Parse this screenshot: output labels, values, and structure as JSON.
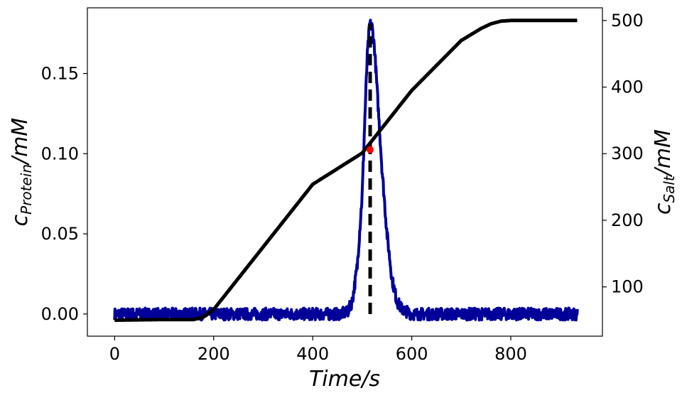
{
  "chart_data": {
    "type": "line",
    "title": "",
    "xlabel": "Time/s",
    "ylabel_left": {
      "main": "c",
      "sub": "Protein",
      "unit": "/mM"
    },
    "ylabel_right": {
      "main": "c",
      "sub": "Salt",
      "unit": "/mM"
    },
    "xlim": [
      -55,
      985
    ],
    "ylim_left": [
      -0.0138,
      0.191
    ],
    "ylim_right": [
      26,
      519
    ],
    "xticks": [
      0,
      200,
      400,
      600,
      800
    ],
    "xtick_labels": [
      "0",
      "200",
      "400",
      "600",
      "800"
    ],
    "yticks_left": [
      0.0,
      0.05,
      0.1,
      0.15
    ],
    "ytick_labels_left": [
      "0.00",
      "0.05",
      "0.10",
      "0.15"
    ],
    "yticks_right": [
      100,
      200,
      300,
      400,
      500
    ],
    "ytick_labels_right": [
      "100",
      "200",
      "300",
      "400",
      "500"
    ],
    "grid": false,
    "legend": "none",
    "colors": {
      "protein": "#000099",
      "salt": "#000000",
      "marker": "#ff0000",
      "peak_line": "#000000"
    },
    "series": [
      {
        "axis": "left",
        "style": "noisy",
        "x": [
          0,
          150,
          300,
          450,
          470,
          480,
          490,
          500,
          505,
          510,
          515,
          520,
          525,
          530,
          540,
          550,
          560,
          570,
          580,
          600,
          700,
          800,
          935
        ],
        "y": [
          0.0,
          0.0,
          0.0,
          0.0,
          0.001,
          0.008,
          0.03,
          0.075,
          0.12,
          0.16,
          0.181,
          0.179,
          0.165,
          0.14,
          0.09,
          0.05,
          0.022,
          0.008,
          0.003,
          0.0,
          0.0,
          0.0,
          0.0
        ]
      },
      {
        "axis": "right",
        "x": [
          0,
          100,
          160,
          180,
          200,
          300,
          400,
          500,
          600,
          700,
          740,
          760,
          780,
          800,
          935
        ],
        "y": [
          50,
          51,
          51,
          55,
          66,
          160,
          254,
          301,
          395,
          470,
          488,
          495,
          499,
          500,
          500
        ]
      }
    ],
    "peak_line": {
      "x": 516,
      "y_from": 0.0,
      "y_to": 0.181
    },
    "marker": {
      "x": 516,
      "y": 0.1025
    }
  }
}
